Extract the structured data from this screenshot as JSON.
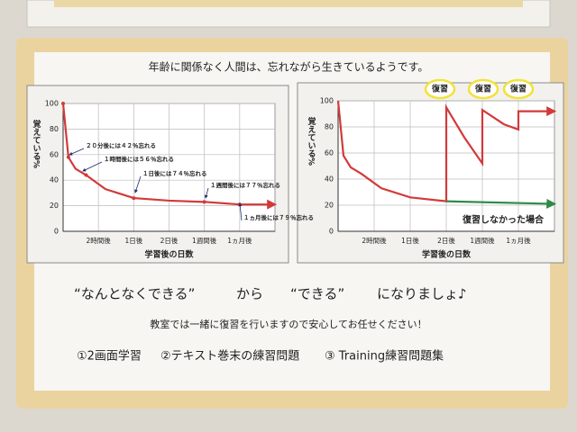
{
  "header": {
    "title": "年齢に関係なく人間は、忘れながら生きているようです。"
  },
  "chart_data": [
    {
      "type": "line",
      "xlabel": "学習後の日数",
      "ylabel": "覚えている%",
      "xlim": [
        0,
        6
      ],
      "xticks": [
        {
          "value": 1,
          "label": "2時間後"
        },
        {
          "value": 2,
          "label": "1日後"
        },
        {
          "value": 3,
          "label": "2日後"
        },
        {
          "value": 4,
          "label": "1週間後"
        },
        {
          "value": 5,
          "label": "1ヵ月後"
        }
      ],
      "ylim": [
        0,
        100
      ],
      "yticks": [
        0,
        20,
        40,
        60,
        80,
        100
      ],
      "grid": true,
      "series": [
        {
          "color": "#d23a3a",
          "x": [
            0,
            0.15,
            0.35,
            0.65,
            1.2,
            2,
            3,
            4,
            5,
            6
          ],
          "values": [
            100,
            58,
            49,
            44,
            33,
            26,
            24,
            23,
            21,
            21
          ]
        }
      ],
      "annotations": [
        "２０分後には４２％忘れる",
        "１時間後には５６％忘れる",
        "１日後には７４％忘れる",
        "１週間後には７７％忘れる",
        "１ヵ月後には７９％忘れる"
      ]
    },
    {
      "type": "line",
      "xlabel": "学習後の日数",
      "ylabel": "覚えている%",
      "xlim": [
        0,
        6
      ],
      "xticks": [
        {
          "value": 1,
          "label": "2時間後"
        },
        {
          "value": 2,
          "label": "1日後"
        },
        {
          "value": 3,
          "label": "2日後"
        },
        {
          "value": 4,
          "label": "1週間後"
        },
        {
          "value": 5,
          "label": "1ヵ月後"
        }
      ],
      "ylim": [
        0,
        100
      ],
      "yticks": [
        0,
        20,
        40,
        60,
        80,
        100
      ],
      "grid": true,
      "series": [
        {
          "color": "#d23a3a",
          "x": [
            0,
            0.15,
            0.35,
            0.65,
            1.2,
            2,
            3,
            3,
            3.5,
            4,
            4,
            4.6,
            5,
            5,
            6
          ],
          "values": [
            100,
            58,
            49,
            44,
            33,
            26,
            23,
            95,
            72,
            52,
            93,
            82,
            78,
            92,
            92
          ]
        },
        {
          "name": "復習しなかった場合",
          "color": "#2f8a4a",
          "x": [
            3,
            6
          ],
          "values": [
            23,
            21
          ]
        }
      ],
      "annotations": [
        "復習",
        "復習",
        "復習"
      ]
    }
  ],
  "slogan": [
    "“なんとなくできる”",
    "から",
    "“できる”",
    "になりましょ♪"
  ],
  "note": "教室では一緒に復習を行いますので安心してお任せください！",
  "items": [
    "①2画面学習",
    "②テキスト巻末の練習問題",
    "③ Training練習問題集"
  ]
}
